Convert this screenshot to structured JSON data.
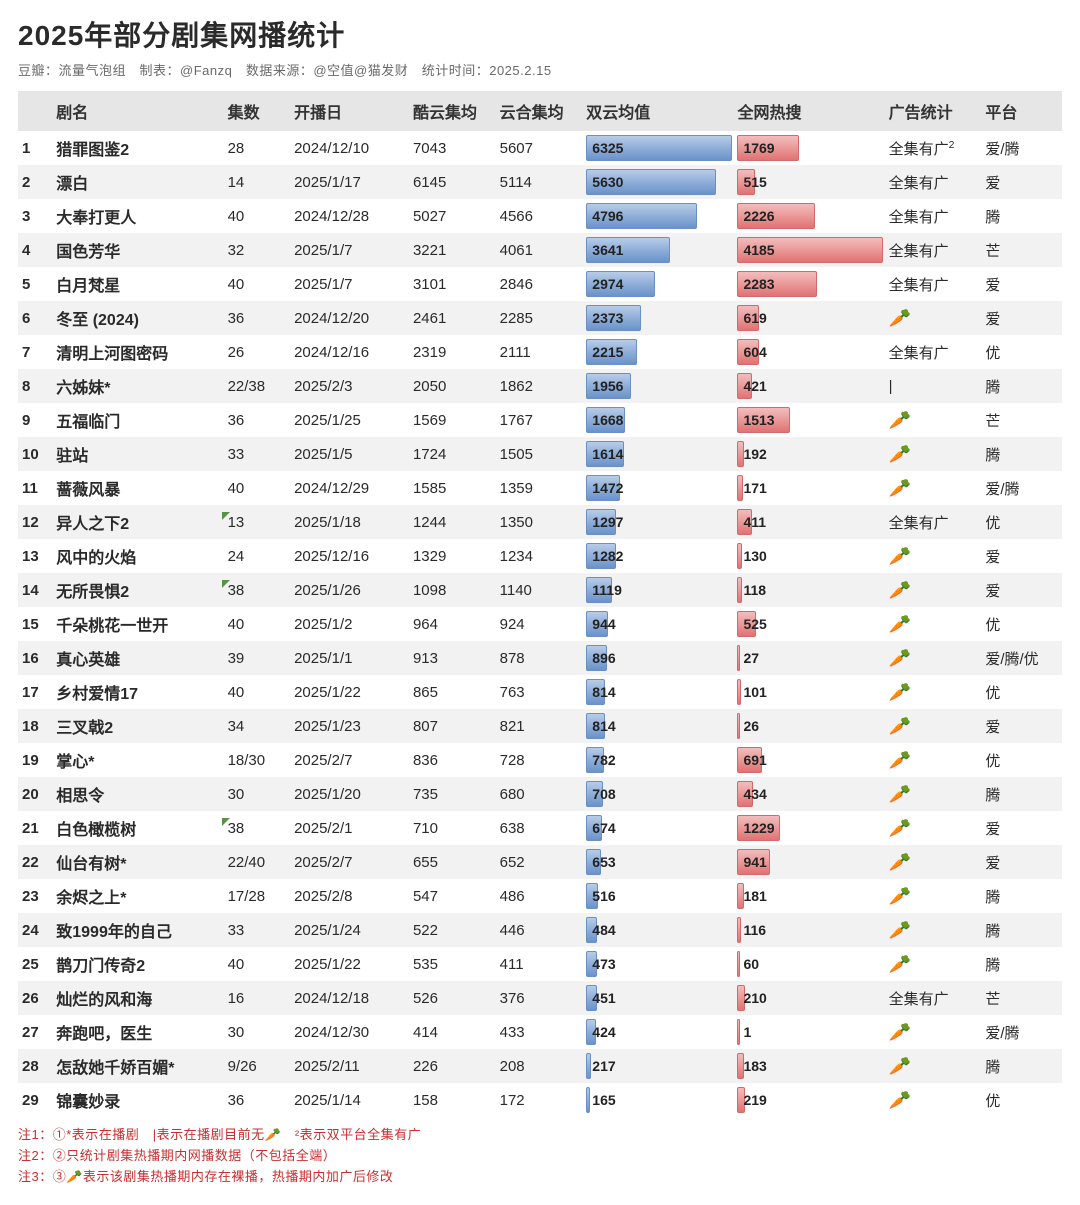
{
  "title": "2025年部分剧集网播统计",
  "meta_line": "豆瓣：流量气泡组　制表：@Fanzq　数据来源：@空值@猫发财　统计时间：2025.2.15",
  "columns": {
    "rank": "",
    "name": "剧名",
    "eps": "集数",
    "date": "开播日",
    "kuyun": "酷云集均",
    "yunhe": "云合集均",
    "dual": "双云均值",
    "hot": "全网热搜",
    "ads": "广告统计",
    "platform": "平台"
  },
  "bar_colors": {
    "blue_gradient": [
      "#b9cce8",
      "#8eaed8",
      "#6a93cb"
    ],
    "blue_border": "#6a8fc4",
    "red_gradient": [
      "#f3bcbc",
      "#eb9898",
      "#e17272"
    ],
    "red_border": "#d26a6a"
  },
  "dual_max": 6325,
  "hot_max": 4185,
  "carrot_glyph": "🥕",
  "rows": [
    {
      "rank": 1,
      "name": "猎罪图鉴2",
      "eps": "28",
      "eps_mark": false,
      "date": "2024/12/10",
      "kuyun": 7043,
      "yunhe": 5607,
      "dual": 6325,
      "hot": 1769,
      "ads": "全集有广²",
      "ads_icon": false,
      "platform": "爱/腾"
    },
    {
      "rank": 2,
      "name": "漂白",
      "eps": "14",
      "eps_mark": false,
      "date": "2025/1/17",
      "kuyun": 6145,
      "yunhe": 5114,
      "dual": 5630,
      "hot": 515,
      "ads": "全集有广",
      "ads_icon": false,
      "platform": "爱"
    },
    {
      "rank": 3,
      "name": "大奉打更人",
      "eps": "40",
      "eps_mark": false,
      "date": "2024/12/28",
      "kuyun": 5027,
      "yunhe": 4566,
      "dual": 4796,
      "hot": 2226,
      "ads": "全集有广",
      "ads_icon": false,
      "platform": "腾"
    },
    {
      "rank": 4,
      "name": "国色芳华",
      "eps": "32",
      "eps_mark": false,
      "date": "2025/1/7",
      "kuyun": 3221,
      "yunhe": 4061,
      "dual": 3641,
      "hot": 4185,
      "ads": "全集有广",
      "ads_icon": false,
      "platform": "芒"
    },
    {
      "rank": 5,
      "name": "白月梵星",
      "eps": "40",
      "eps_mark": false,
      "date": "2025/1/7",
      "kuyun": 3101,
      "yunhe": 2846,
      "dual": 2974,
      "hot": 2283,
      "ads": "全集有广",
      "ads_icon": false,
      "platform": "爱"
    },
    {
      "rank": 6,
      "name": "冬至 (2024)",
      "eps": "36",
      "eps_mark": false,
      "date": "2024/12/20",
      "kuyun": 2461,
      "yunhe": 2285,
      "dual": 2373,
      "hot": 619,
      "ads": "",
      "ads_icon": true,
      "platform": "爱"
    },
    {
      "rank": 7,
      "name": "清明上河图密码",
      "eps": "26",
      "eps_mark": false,
      "date": "2024/12/16",
      "kuyun": 2319,
      "yunhe": 2111,
      "dual": 2215,
      "hot": 604,
      "ads": "全集有广",
      "ads_icon": false,
      "platform": "优"
    },
    {
      "rank": 8,
      "name": "六姊妹*",
      "eps": "22/38",
      "eps_mark": false,
      "date": "2025/2/3",
      "kuyun": 2050,
      "yunhe": 1862,
      "dual": 1956,
      "hot": 421,
      "ads": "|",
      "ads_icon": false,
      "platform": "腾"
    },
    {
      "rank": 9,
      "name": "五福临门",
      "eps": "36",
      "eps_mark": false,
      "date": "2025/1/25",
      "kuyun": 1569,
      "yunhe": 1767,
      "dual": 1668,
      "hot": 1513,
      "ads": "",
      "ads_icon": true,
      "platform": "芒"
    },
    {
      "rank": 10,
      "name": "驻站",
      "eps": "33",
      "eps_mark": false,
      "date": "2025/1/5",
      "kuyun": 1724,
      "yunhe": 1505,
      "dual": 1614,
      "hot": 192,
      "ads": "",
      "ads_icon": true,
      "platform": "腾"
    },
    {
      "rank": 11,
      "name": "蔷薇风暴",
      "eps": "40",
      "eps_mark": false,
      "date": "2024/12/29",
      "kuyun": 1585,
      "yunhe": 1359,
      "dual": 1472,
      "hot": 171,
      "ads": "",
      "ads_icon": true,
      "platform": "爱/腾"
    },
    {
      "rank": 12,
      "name": "异人之下2",
      "eps": "13",
      "eps_mark": true,
      "date": "2025/1/18",
      "kuyun": 1244,
      "yunhe": 1350,
      "dual": 1297,
      "hot": 411,
      "ads": "全集有广",
      "ads_icon": false,
      "platform": "优"
    },
    {
      "rank": 13,
      "name": "风中的火焰",
      "eps": "24",
      "eps_mark": false,
      "date": "2025/12/16",
      "kuyun": 1329,
      "yunhe": 1234,
      "dual": 1282,
      "hot": 130,
      "ads": "",
      "ads_icon": true,
      "platform": "爱"
    },
    {
      "rank": 14,
      "name": "无所畏惧2",
      "eps": "38",
      "eps_mark": true,
      "date": "2025/1/26",
      "kuyun": 1098,
      "yunhe": 1140,
      "dual": 1119,
      "hot": 118,
      "ads": "",
      "ads_icon": true,
      "platform": "爱"
    },
    {
      "rank": 15,
      "name": "千朵桃花一世开",
      "eps": "40",
      "eps_mark": false,
      "date": "2025/1/2",
      "kuyun": 964,
      "yunhe": 924,
      "dual": 944,
      "hot": 525,
      "ads": "",
      "ads_icon": true,
      "platform": "优"
    },
    {
      "rank": 16,
      "name": "真心英雄",
      "eps": "39",
      "eps_mark": false,
      "date": "2025/1/1",
      "kuyun": 913,
      "yunhe": 878,
      "dual": 896,
      "hot": 27,
      "ads": "",
      "ads_icon": true,
      "platform": "爱/腾/优"
    },
    {
      "rank": 17,
      "name": "乡村爱情17",
      "eps": "40",
      "eps_mark": false,
      "date": "2025/1/22",
      "kuyun": 865,
      "yunhe": 763,
      "dual": 814,
      "hot": 101,
      "ads": "",
      "ads_icon": true,
      "platform": "优"
    },
    {
      "rank": 18,
      "name": "三叉戟2",
      "eps": "34",
      "eps_mark": false,
      "date": "2025/1/23",
      "kuyun": 807,
      "yunhe": 821,
      "dual": 814,
      "hot": 26,
      "ads": "",
      "ads_icon": true,
      "platform": "爱"
    },
    {
      "rank": 19,
      "name": "掌心*",
      "eps": "18/30",
      "eps_mark": false,
      "date": "2025/2/7",
      "kuyun": 836,
      "yunhe": 728,
      "dual": 782,
      "hot": 691,
      "ads": "",
      "ads_icon": true,
      "platform": "优"
    },
    {
      "rank": 20,
      "name": "相思令",
      "eps": "30",
      "eps_mark": false,
      "date": "2025/1/20",
      "kuyun": 735,
      "yunhe": 680,
      "dual": 708,
      "hot": 434,
      "ads": "",
      "ads_icon": true,
      "platform": "腾"
    },
    {
      "rank": 21,
      "name": "白色橄榄树",
      "eps": "38",
      "eps_mark": true,
      "date": "2025/2/1",
      "kuyun": 710,
      "yunhe": 638,
      "dual": 674,
      "hot": 1229,
      "ads": "",
      "ads_icon": true,
      "platform": "爱"
    },
    {
      "rank": 22,
      "name": "仙台有树*",
      "eps": "22/40",
      "eps_mark": false,
      "date": "2025/2/7",
      "kuyun": 655,
      "yunhe": 652,
      "dual": 653,
      "hot": 941,
      "ads": "",
      "ads_icon": true,
      "platform": "爱"
    },
    {
      "rank": 23,
      "name": "余烬之上*",
      "eps": "17/28",
      "eps_mark": false,
      "date": "2025/2/8",
      "kuyun": 547,
      "yunhe": 486,
      "dual": 516,
      "hot": 181,
      "ads": "",
      "ads_icon": true,
      "platform": "腾"
    },
    {
      "rank": 24,
      "name": "致1999年的自己",
      "eps": "33",
      "eps_mark": false,
      "date": "2025/1/24",
      "kuyun": 522,
      "yunhe": 446,
      "dual": 484,
      "hot": 116,
      "ads": "",
      "ads_icon": true,
      "platform": "腾"
    },
    {
      "rank": 25,
      "name": "鹊刀门传奇2",
      "eps": "40",
      "eps_mark": false,
      "date": "2025/1/22",
      "kuyun": 535,
      "yunhe": 411,
      "dual": 473,
      "hot": 60,
      "ads": "",
      "ads_icon": true,
      "platform": "腾"
    },
    {
      "rank": 26,
      "name": "灿烂的风和海",
      "eps": "16",
      "eps_mark": false,
      "date": "2024/12/18",
      "kuyun": 526,
      "yunhe": 376,
      "dual": 451,
      "hot": 210,
      "ads": "全集有广",
      "ads_icon": false,
      "platform": "芒"
    },
    {
      "rank": 27,
      "name": "奔跑吧，医生",
      "eps": "30",
      "eps_mark": false,
      "date": "2024/12/30",
      "kuyun": 414,
      "yunhe": 433,
      "dual": 424,
      "hot": 1,
      "ads": "",
      "ads_icon": true,
      "platform": "爱/腾"
    },
    {
      "rank": 28,
      "name": "怎敌她千娇百媚*",
      "eps": "9/26",
      "eps_mark": false,
      "date": "2025/2/11",
      "kuyun": 226,
      "yunhe": 208,
      "dual": 217,
      "hot": 183,
      "ads": "",
      "ads_icon": true,
      "platform": "腾"
    },
    {
      "rank": 29,
      "name": "锦囊妙录",
      "eps": "36",
      "eps_mark": false,
      "date": "2025/1/14",
      "kuyun": 158,
      "yunhe": 172,
      "dual": 165,
      "hot": 219,
      "ads": "",
      "ads_icon": true,
      "platform": "优"
    }
  ],
  "footnotes": [
    "注1：①*表示在播剧　|表示在播剧目前无🥕　²表示双平台全集有广",
    "注2：②只统计剧集热播期内网播数据（不包括全端）",
    "注3：③🥕表示该剧集热播期内存在裸播，热播期内加广后修改"
  ]
}
